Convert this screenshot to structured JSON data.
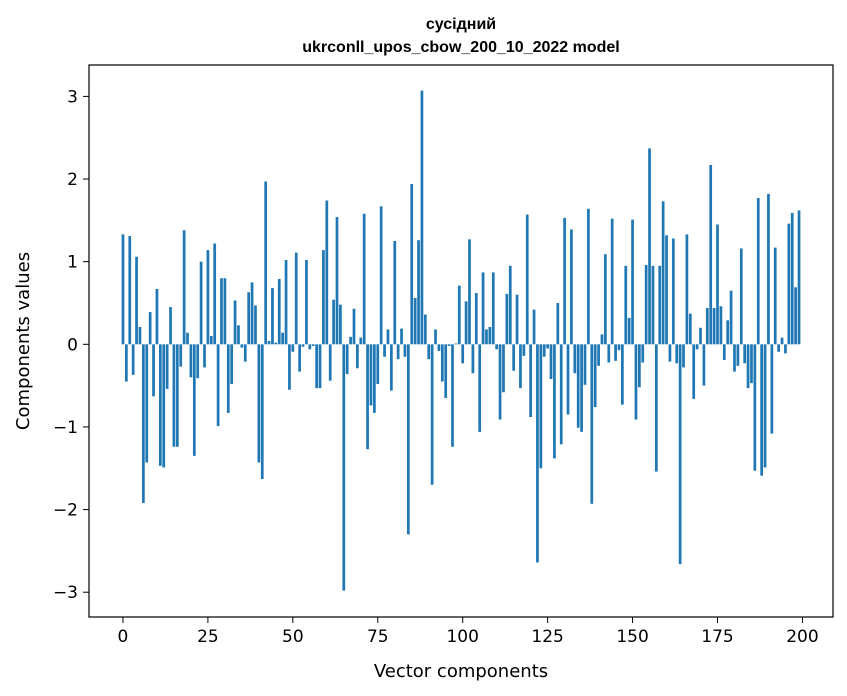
{
  "chart_data": {
    "type": "bar",
    "title_line1": "сусідний",
    "title_line2": "ukrconll_upos_cbow_200_10_2022 model",
    "xlabel": "Vector components",
    "ylabel": "Components values",
    "xlim": [
      -10,
      209
    ],
    "ylim": [
      -3.3,
      3.38
    ],
    "xticks": [
      0,
      25,
      50,
      75,
      100,
      125,
      150,
      175,
      200
    ],
    "yticks": [
      -3,
      -2,
      -1,
      0,
      1,
      2,
      3
    ],
    "xtick_labels": [
      "0",
      "25",
      "50",
      "75",
      "100",
      "125",
      "150",
      "175",
      "200"
    ],
    "ytick_labels": [
      "−3",
      "−2",
      "−1",
      "0",
      "1",
      "2",
      "3"
    ],
    "bar_color": "#1f77b4",
    "values": [
      1.33,
      -0.45,
      1.31,
      -0.37,
      1.06,
      0.21,
      -1.92,
      -1.43,
      0.39,
      -0.63,
      0.67,
      -1.47,
      -1.49,
      -0.54,
      0.45,
      -1.24,
      -1.24,
      -0.27,
      1.38,
      0.14,
      -0.4,
      -1.35,
      -0.41,
      1.0,
      -0.28,
      1.14,
      0.1,
      1.22,
      -0.99,
      0.8,
      0.8,
      -0.83,
      -0.48,
      0.53,
      0.23,
      -0.04,
      -0.21,
      0.63,
      0.75,
      0.47,
      -1.43,
      -1.63,
      1.97,
      0.04,
      0.68,
      0.02,
      0.79,
      0.14,
      1.02,
      -0.55,
      -0.09,
      1.11,
      -0.33,
      -0.03,
      1.02,
      -0.06,
      -0.02,
      -0.53,
      -0.53,
      1.14,
      1.74,
      -0.44,
      0.54,
      1.54,
      0.48,
      -2.98,
      -0.36,
      0.09,
      0.43,
      -0.29,
      0.08,
      1.58,
      -1.27,
      -0.74,
      -0.83,
      -0.48,
      1.67,
      -0.15,
      0.18,
      -0.56,
      1.25,
      -0.18,
      0.19,
      -0.15,
      -2.3,
      1.94,
      0.56,
      1.26,
      3.07,
      0.36,
      -0.18,
      -1.7,
      0.18,
      -0.08,
      -0.45,
      -0.65,
      -0.02,
      -1.24,
      0.01,
      0.71,
      -0.23,
      0.52,
      1.27,
      -0.35,
      0.62,
      -1.06,
      0.87,
      0.18,
      0.21,
      0.87,
      -0.06,
      -0.91,
      -0.58,
      0.61,
      0.95,
      -0.32,
      0.6,
      -0.53,
      -0.14,
      1.57,
      -0.88,
      0.42,
      -2.64,
      -1.5,
      -0.15,
      -0.05,
      -0.42,
      -1.38,
      0.5,
      -1.21,
      1.53,
      -0.85,
      1.39,
      -0.35,
      -1.01,
      -1.06,
      -0.49,
      1.64,
      -1.93,
      -0.76,
      -0.26,
      0.12,
      1.09,
      -0.22,
      1.52,
      -0.2,
      -0.07,
      -0.73,
      0.95,
      0.32,
      1.51,
      -0.91,
      -0.52,
      -0.22,
      0.96,
      2.37,
      0.95,
      -1.54,
      0.95,
      1.73,
      1.32,
      -0.21,
      1.28,
      -0.23,
      -2.66,
      -0.28,
      1.33,
      0.37,
      -0.66,
      -0.06,
      0.2,
      -0.5,
      0.44,
      2.17,
      0.44,
      1.45,
      0.46,
      -0.19,
      0.29,
      0.65,
      -0.33,
      -0.26,
      1.16,
      -0.23,
      -0.53,
      -0.47,
      -1.53,
      1.77,
      -1.59,
      -1.49,
      1.82,
      -1.08,
      1.17,
      -0.09,
      0.08,
      -0.11,
      1.46,
      1.59,
      0.69,
      1.62
    ]
  }
}
